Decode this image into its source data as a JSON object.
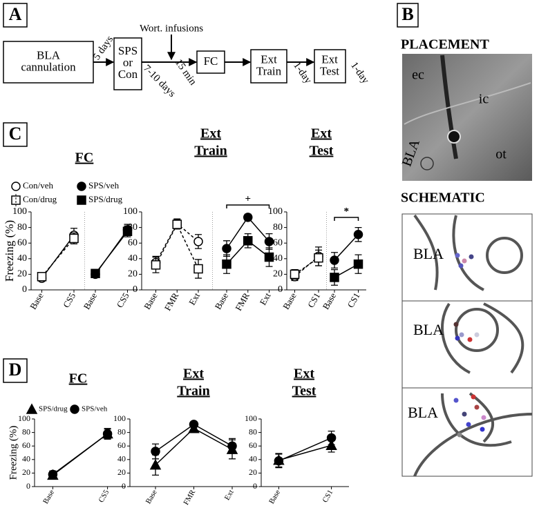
{
  "panel_labels": [
    "A",
    "B",
    "C",
    "D"
  ],
  "diagram": {
    "boxes": [
      "BLA\ncannulation",
      "SPS\nor\nCon",
      "FC",
      "Ext\nTrain",
      "Ext\nTest"
    ],
    "arrow_labels": [
      "5 days",
      "7-10 days",
      "15 min",
      "1-day",
      "1-day"
    ],
    "infusion_label": "Wort. infusions"
  },
  "placement": {
    "title": "PLACEMENT",
    "labels": [
      "ec",
      "ic",
      "BLA",
      "ot"
    ]
  },
  "schematic": {
    "title": "SCHEMATIC",
    "labels": [
      "BLA",
      "BLA",
      "BLA"
    ]
  },
  "chart_data": [
    {
      "type": "line",
      "title": "FC",
      "ylabel": "Freezing (%)",
      "ylim": [
        0,
        100
      ],
      "yticks": [
        0,
        20,
        40,
        60,
        80,
        100
      ],
      "color": "#000000",
      "legend": true,
      "panels": [
        {
          "categories": [
            "Base",
            "CS5"
          ],
          "series": [
            {
              "name": "Con/veh",
              "marker": "circle",
              "filled": false,
              "dashed": false,
              "values": [
                15,
                70
              ],
              "errors": [
                3,
                9
              ]
            },
            {
              "name": "Con/drug",
              "marker": "square",
              "filled": false,
              "dashed": true,
              "values": [
                17,
                66
              ],
              "errors": [
                3,
                7
              ]
            }
          ]
        },
        {
          "categories": [
            "Base",
            "CS5"
          ],
          "series": [
            {
              "name": "SPS/veh",
              "marker": "circle",
              "filled": true,
              "dashed": false,
              "values": [
                20,
                77
              ],
              "errors": [
                4,
                7
              ]
            },
            {
              "name": "SPS/drug",
              "marker": "square",
              "filled": true,
              "dashed": false,
              "values": [
                21,
                75
              ],
              "errors": [
                4,
                7
              ]
            }
          ]
        }
      ]
    },
    {
      "type": "line",
      "title": "Ext\nTrain",
      "ylim": [
        0,
        100
      ],
      "yticks": [
        0,
        20,
        40,
        60,
        80,
        100
      ],
      "color": "#000000",
      "panels": [
        {
          "categories": [
            "Base",
            "FMR",
            "Ext"
          ],
          "series": [
            {
              "marker": "circle",
              "filled": false,
              "dashed": true,
              "values": [
                35,
                85,
                62
              ],
              "errors": [
                8,
                6,
                9
              ]
            },
            {
              "marker": "square",
              "filled": false,
              "dashed": true,
              "values": [
                32,
                84,
                27
              ],
              "errors": [
                10,
                6,
                12
              ]
            }
          ]
        },
        {
          "categories": [
            "Base",
            "FMR",
            "Ext"
          ],
          "annotation": "+",
          "series": [
            {
              "marker": "circle",
              "filled": true,
              "dashed": false,
              "values": [
                53,
                93,
                62
              ],
              "errors": [
                10,
                4,
                10
              ]
            },
            {
              "marker": "square",
              "filled": true,
              "dashed": false,
              "values": [
                33,
                63,
                42
              ],
              "errors": [
                12,
                9,
                12
              ]
            }
          ]
        }
      ]
    },
    {
      "type": "line",
      "title": "Ext\nTest",
      "ylim": [
        0,
        100
      ],
      "yticks": [
        0,
        20,
        40,
        60,
        80,
        100
      ],
      "color": "#000000",
      "panels": [
        {
          "categories": [
            "Base",
            "CS1"
          ],
          "series": [
            {
              "marker": "circle",
              "filled": false,
              "dashed": true,
              "values": [
                17,
                43
              ],
              "errors": [
                5,
                12
              ]
            },
            {
              "marker": "square",
              "filled": false,
              "dashed": true,
              "values": [
                20,
                41
              ],
              "errors": [
                6,
                10
              ]
            }
          ]
        },
        {
          "categories": [
            "Base",
            "CS1"
          ],
          "annotation": "*",
          "series": [
            {
              "marker": "circle",
              "filled": true,
              "dashed": false,
              "values": [
                38,
                71
              ],
              "errors": [
                10,
                9
              ]
            },
            {
              "marker": "square",
              "filled": true,
              "dashed": false,
              "values": [
                16,
                33
              ],
              "errors": [
                10,
                12
              ]
            }
          ]
        }
      ]
    },
    {
      "type": "line",
      "title": "FC",
      "ylabel": "Freezing (%)",
      "ylim": [
        0,
        100
      ],
      "yticks": [
        0,
        20,
        40,
        60,
        80,
        100
      ],
      "color": "#000000",
      "legend": true,
      "panels": [
        {
          "categories": [
            "Base",
            "CS5"
          ],
          "series": [
            {
              "name": "SPS/drug",
              "marker": "triangle",
              "filled": true,
              "dashed": false,
              "values": [
                17,
                78
              ],
              "errors": [
                6,
                7
              ]
            },
            {
              "name": "SPS/veh",
              "marker": "circle",
              "filled": true,
              "dashed": false,
              "values": [
                18,
                78
              ],
              "errors": [
                5,
                8
              ]
            }
          ]
        }
      ]
    },
    {
      "type": "line",
      "title": "Ext\nTrain",
      "ylim": [
        0,
        100
      ],
      "yticks": [
        0,
        20,
        40,
        60,
        80,
        100
      ],
      "color": "#000000",
      "panels": [
        {
          "categories": [
            "Base",
            "FMR",
            "Ext"
          ],
          "series": [
            {
              "marker": "triangle",
              "filled": true,
              "dashed": false,
              "values": [
                32,
                86,
                55
              ],
              "errors": [
                15,
                4,
                14
              ]
            },
            {
              "marker": "circle",
              "filled": true,
              "dashed": false,
              "values": [
                52,
                92,
                60
              ],
              "errors": [
                11,
                4,
                11
              ]
            }
          ]
        }
      ]
    },
    {
      "type": "line",
      "title": "Ext\nTest",
      "ylim": [
        0,
        100
      ],
      "yticks": [
        0,
        20,
        40,
        60,
        80,
        100
      ],
      "color": "#000000",
      "panels": [
        {
          "categories": [
            "Base",
            "CS1"
          ],
          "series": [
            {
              "marker": "triangle",
              "filled": true,
              "dashed": false,
              "values": [
                39,
                61
              ],
              "errors": [
                10,
                10
              ]
            },
            {
              "marker": "circle",
              "filled": true,
              "dashed": false,
              "values": [
                38,
                72
              ],
              "errors": [
                10,
                10
              ]
            }
          ]
        }
      ]
    }
  ]
}
